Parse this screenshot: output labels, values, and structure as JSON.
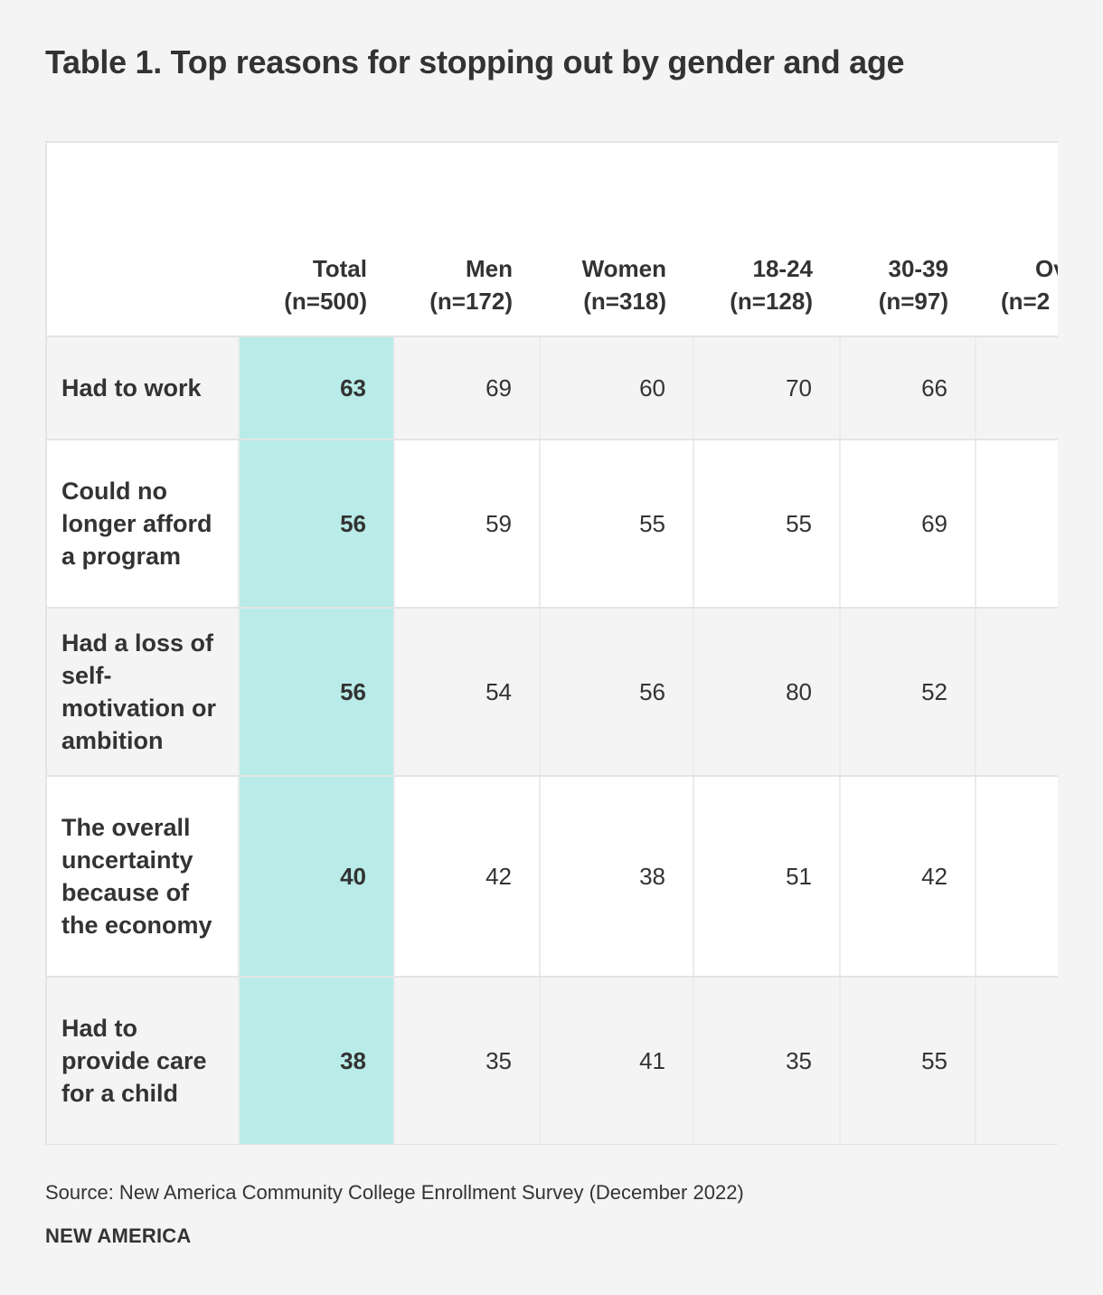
{
  "title": "Table 1. Top reasons for stopping out by gender and age",
  "source": "Source: New America Community College Enrollment Survey (December 2022)",
  "brand": "NEW AMERICA",
  "chart_data": {
    "type": "table",
    "title": "Table 1. Top reasons for stopping out by gender and age",
    "columns": [
      {
        "label": "Total",
        "n": "(n=500)"
      },
      {
        "label": "Men",
        "n": "(n=172)"
      },
      {
        "label": "Women",
        "n": "(n=318)"
      },
      {
        "label": "18-24",
        "n": "(n=128)"
      },
      {
        "label": "30-39",
        "n": "(n=97)"
      },
      {
        "label": "Ov",
        "n": "(n=2"
      }
    ],
    "rows": [
      {
        "label": "Had to work",
        "values": [
          "63",
          "69",
          "60",
          "70",
          "66",
          ""
        ]
      },
      {
        "label": "Could no longer afford a program",
        "values": [
          "56",
          "59",
          "55",
          "55",
          "69",
          ""
        ]
      },
      {
        "label": "Had a loss of self-motivation or ambition",
        "values": [
          "56",
          "54",
          "56",
          "80",
          "52",
          ""
        ]
      },
      {
        "label": "The overall uncertainty because of the economy",
        "values": [
          "40",
          "42",
          "38",
          "51",
          "42",
          ""
        ]
      },
      {
        "label": "Had to provide care for a child",
        "values": [
          "38",
          "35",
          "41",
          "35",
          "55",
          ""
        ]
      }
    ],
    "highlight_column": "Total",
    "highlight_color": "#b9ece8"
  }
}
